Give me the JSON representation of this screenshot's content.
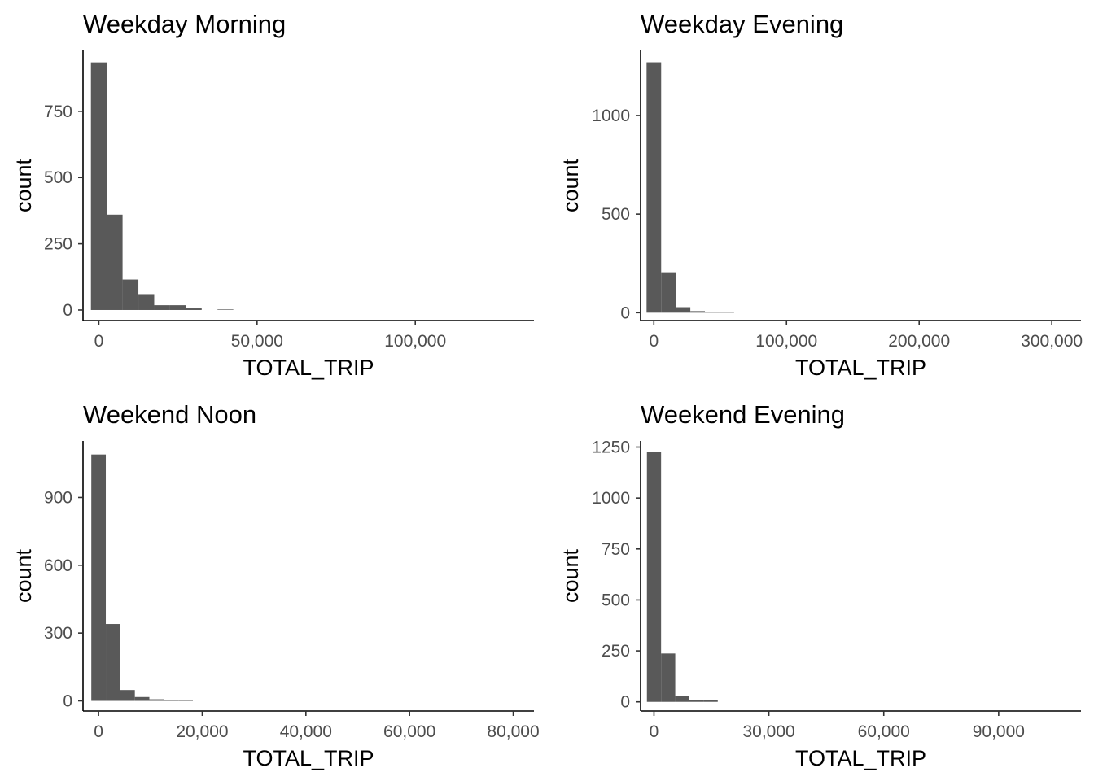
{
  "chart_data": [
    {
      "type": "bar",
      "title": "Weekday Morning",
      "xlabel": "TOTAL_TRIP",
      "ylabel": "count",
      "bin_width": 5000,
      "bins": [
        {
          "x0": -2500,
          "x1": 2500,
          "count": 935
        },
        {
          "x0": 2500,
          "x1": 7500,
          "count": 360
        },
        {
          "x0": 7500,
          "x1": 12500,
          "count": 115
        },
        {
          "x0": 12500,
          "x1": 17500,
          "count": 60
        },
        {
          "x0": 17500,
          "x1": 22500,
          "count": 18
        },
        {
          "x0": 22500,
          "x1": 27500,
          "count": 18
        },
        {
          "x0": 27500,
          "x1": 32500,
          "count": 6
        },
        {
          "x0": 32500,
          "x1": 37500,
          "count": 0
        },
        {
          "x0": 37500,
          "x1": 42500,
          "count": 2
        },
        {
          "x0": 42500,
          "x1": 47500,
          "count": 0
        }
      ],
      "xlim": [
        -5000,
        137500
      ],
      "ylim": [
        -40,
        980
      ],
      "xticks": [
        0,
        50000,
        100000
      ],
      "xtick_labels": [
        "0",
        "50,000",
        "100,000"
      ],
      "yticks": [
        0,
        250,
        500,
        750
      ],
      "ytick_labels": [
        "0",
        "250",
        "500",
        "750"
      ],
      "grid": false,
      "legend": "none"
    },
    {
      "type": "bar",
      "title": "Weekday Evening",
      "xlabel": "TOTAL_TRIP",
      "ylabel": "count",
      "bin_width": 11000,
      "bins": [
        {
          "x0": -5500,
          "x1": 5500,
          "count": 1270
        },
        {
          "x0": 5500,
          "x1": 16500,
          "count": 205
        },
        {
          "x0": 16500,
          "x1": 27500,
          "count": 28
        },
        {
          "x0": 27500,
          "x1": 38500,
          "count": 8
        },
        {
          "x0": 38500,
          "x1": 49500,
          "count": 3
        },
        {
          "x0": 49500,
          "x1": 60500,
          "count": 3
        }
      ],
      "xlim": [
        -10000,
        322000
      ],
      "ylim": [
        -40,
        1330
      ],
      "xticks": [
        0,
        100000,
        200000,
        300000
      ],
      "xtick_labels": [
        "0",
        "100,000",
        "200,000",
        "300,000"
      ],
      "yticks": [
        0,
        500,
        1000
      ],
      "ytick_labels": [
        "0",
        "500",
        "1000"
      ],
      "grid": false,
      "legend": "none"
    },
    {
      "type": "bar",
      "title": "Weekend Noon",
      "xlabel": "TOTAL_TRIP",
      "ylabel": "count",
      "bin_width": 2800,
      "bins": [
        {
          "x0": -1400,
          "x1": 1400,
          "count": 1090
        },
        {
          "x0": 1400,
          "x1": 4200,
          "count": 340
        },
        {
          "x0": 4200,
          "x1": 7000,
          "count": 48
        },
        {
          "x0": 7000,
          "x1": 9800,
          "count": 17
        },
        {
          "x0": 9800,
          "x1": 12600,
          "count": 7
        },
        {
          "x0": 12600,
          "x1": 15400,
          "count": 3
        },
        {
          "x0": 15400,
          "x1": 18200,
          "count": 2
        }
      ],
      "xlim": [
        -3000,
        84000
      ],
      "ylim": [
        -45,
        1150
      ],
      "xticks": [
        0,
        20000,
        40000,
        60000,
        80000
      ],
      "xtick_labels": [
        "0",
        "20,000",
        "40,000",
        "60,000",
        "80,000"
      ],
      "yticks": [
        0,
        300,
        600,
        900
      ],
      "ytick_labels": [
        "0",
        "300",
        "600",
        "900"
      ],
      "grid": false,
      "legend": "none"
    },
    {
      "type": "bar",
      "title": "Weekend Evening",
      "xlabel": "TOTAL_TRIP",
      "ylabel": "count",
      "bin_width": 3700,
      "bins": [
        {
          "x0": -1850,
          "x1": 1850,
          "count": 1225
        },
        {
          "x0": 1850,
          "x1": 5550,
          "count": 237
        },
        {
          "x0": 5550,
          "x1": 9250,
          "count": 30
        },
        {
          "x0": 9250,
          "x1": 12950,
          "count": 8
        },
        {
          "x0": 12950,
          "x1": 16650,
          "count": 8
        }
      ],
      "xlim": [
        -3500,
        111500
      ],
      "ylim": [
        -45,
        1280
      ],
      "xticks": [
        0,
        30000,
        60000,
        90000
      ],
      "xtick_labels": [
        "0",
        "30,000",
        "60,000",
        "90,000"
      ],
      "yticks": [
        0,
        250,
        500,
        750,
        1000,
        1250
      ],
      "ytick_labels": [
        "0",
        "250",
        "500",
        "750",
        "1000",
        "1250"
      ],
      "grid": false,
      "legend": "none"
    }
  ]
}
